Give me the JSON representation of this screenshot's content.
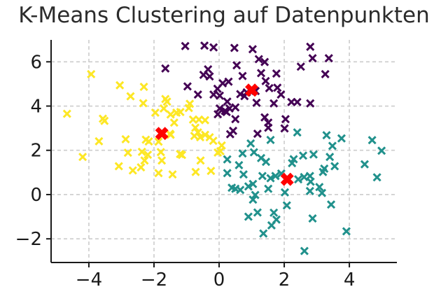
{
  "title": "K-Means Clustering auf Datenpunkten",
  "colors": {
    "background": "#ffffff",
    "title_text": "#2b2b2b",
    "grid": "#cccccc",
    "axis": "#1a1a1a",
    "tick_label": "#1a1a1a",
    "cluster_yellow": "#fde725",
    "cluster_purple": "#440154",
    "cluster_teal": "#21918c",
    "centroid_red": "#ff0000"
  },
  "chart_data": {
    "type": "scatter",
    "title": "K-Means Clustering auf Datenpunkten",
    "xlabel": "",
    "ylabel": "",
    "legend": null,
    "grid": true,
    "grid_style": "dashed",
    "xlim": [
      -5.16,
      5.46
    ],
    "ylim": [
      -3.07,
      6.99
    ],
    "x_ticks": [
      {
        "value": -4,
        "label": "−4"
      },
      {
        "value": -2,
        "label": "−2"
      },
      {
        "value": 0,
        "label": "0"
      },
      {
        "value": 2,
        "label": "2"
      },
      {
        "value": 4,
        "label": "4"
      }
    ],
    "y_ticks": [
      {
        "value": -2,
        "label": "−2"
      },
      {
        "value": 0,
        "label": "0"
      },
      {
        "value": 2,
        "label": "2"
      },
      {
        "value": 4,
        "label": "4"
      },
      {
        "value": 6,
        "label": "6"
      }
    ],
    "series": [
      {
        "name": "cluster-yellow",
        "color": "#fde725",
        "marker": "x",
        "points": [
          [
            -3.93,
            5.44
          ],
          [
            -3.05,
            4.94
          ],
          [
            -2.31,
            4.87
          ],
          [
            -2.72,
            4.44
          ],
          [
            -2.33,
            4.13
          ],
          [
            -4.67,
            3.65
          ],
          [
            -3.57,
            3.43
          ],
          [
            -3.52,
            3.33
          ],
          [
            -3.69,
            2.41
          ],
          [
            -2.87,
            2.5
          ],
          [
            -2.25,
            2.48
          ],
          [
            -2.16,
            2.4
          ],
          [
            -1.65,
            4.32
          ],
          [
            -1.6,
            4.2
          ],
          [
            -1.7,
            3.89
          ],
          [
            -1.96,
            3.7
          ],
          [
            -1.49,
            3.62
          ],
          [
            -1.31,
            3.7
          ],
          [
            -1.19,
            3.73
          ],
          [
            -1.38,
            3.25
          ],
          [
            -0.9,
            4.1
          ],
          [
            -0.93,
            3.91
          ],
          [
            -0.8,
            3.39
          ],
          [
            -0.62,
            3.39
          ],
          [
            -0.43,
            3.36
          ],
          [
            -0.73,
            3.02
          ],
          [
            -0.65,
            2.81
          ],
          [
            -0.76,
            2.65
          ],
          [
            -0.58,
            2.59
          ],
          [
            -0.43,
            2.7
          ],
          [
            -0.29,
            2.59
          ],
          [
            -0.18,
            2.43
          ],
          [
            0.08,
            2.22
          ],
          [
            0.04,
            1.96
          ],
          [
            -1.49,
            2.7
          ],
          [
            -1.51,
            2.75
          ],
          [
            -1.86,
            2.39
          ],
          [
            -1.79,
            1.92
          ],
          [
            -1.76,
            1.54
          ],
          [
            -1.2,
            1.83
          ],
          [
            -1.14,
            1.79
          ],
          [
            -0.57,
            1.54
          ],
          [
            -1.86,
            0.97
          ],
          [
            -1.43,
            0.91
          ],
          [
            -0.72,
            1.02
          ],
          [
            -0.25,
            1.07
          ],
          [
            -0.04,
            1.9
          ],
          [
            -4.19,
            1.7
          ],
          [
            -3.08,
            1.28
          ],
          [
            -2.8,
            1.89
          ],
          [
            -2.65,
            1.09
          ],
          [
            -2.4,
            1.23
          ],
          [
            -2.29,
            1.54
          ],
          [
            -2.19,
            1.8
          ],
          [
            -2.37,
            1.93
          ]
        ]
      },
      {
        "name": "cluster-purple",
        "color": "#440154",
        "marker": "x",
        "points": [
          [
            -1.04,
            6.71
          ],
          [
            -0.45,
            6.73
          ],
          [
            -0.17,
            6.65
          ],
          [
            0.47,
            6.63
          ],
          [
            1.03,
            6.57
          ],
          [
            -1.65,
            5.7
          ],
          [
            -0.34,
            5.66
          ],
          [
            -0.48,
            5.41
          ],
          [
            -0.29,
            5.34
          ],
          [
            0.54,
            5.84
          ],
          [
            0.72,
            5.36
          ],
          [
            0.29,
            5.1
          ],
          [
            0.11,
            5.03
          ],
          [
            -0.97,
            4.89
          ],
          [
            -0.05,
            4.78
          ],
          [
            -0.65,
            4.52
          ],
          [
            -0.17,
            4.52
          ],
          [
            0.02,
            4.47
          ],
          [
            0.65,
            4.54
          ],
          [
            0.25,
            4.2
          ],
          [
            0.5,
            3.94
          ],
          [
            0.32,
            3.89
          ],
          [
            0.18,
            3.78
          ],
          [
            -0.04,
            3.63
          ],
          [
            0.02,
            3.89
          ],
          [
            0.23,
            3.73
          ],
          [
            0.5,
            3.41
          ],
          [
            0.43,
            2.88
          ],
          [
            0.34,
            2.73
          ],
          [
            1.22,
            6.12
          ],
          [
            1.4,
            5.99
          ],
          [
            2.8,
            6.68
          ],
          [
            2.87,
            6.16
          ],
          [
            3.37,
            6.16
          ],
          [
            2.51,
            5.78
          ],
          [
            1.29,
            5.49
          ],
          [
            1.76,
            5.47
          ],
          [
            3.26,
            5.44
          ],
          [
            1.43,
            5.13
          ],
          [
            1.54,
            4.81
          ],
          [
            1.79,
            4.83
          ],
          [
            1.9,
            4.52
          ],
          [
            1.15,
            4.15
          ],
          [
            1.68,
            4.12
          ],
          [
            2.22,
            4.18
          ],
          [
            2.4,
            4.18
          ],
          [
            2.8,
            4.12
          ],
          [
            1.4,
            3.49
          ],
          [
            1.51,
            3.25
          ],
          [
            1.51,
            3.02
          ],
          [
            2.04,
            3.41
          ],
          [
            2.01,
            2.99
          ],
          [
            1.18,
            2.75
          ],
          [
            0.85,
            4.62
          ],
          [
            1.12,
            4.68
          ],
          [
            0.78,
            4.45
          ]
        ]
      },
      {
        "name": "cluster-teal",
        "color": "#21918c",
        "marker": "x",
        "points": [
          [
            0.25,
            1.59
          ],
          [
            0.61,
            1.33
          ],
          [
            0.25,
            0.97
          ],
          [
            0.75,
            0.91
          ],
          [
            0.72,
            1.86
          ],
          [
            1.07,
            1.91
          ],
          [
            0.39,
            0.31
          ],
          [
            0.5,
            0.26
          ],
          [
            0.65,
            0.21
          ],
          [
            0.9,
            0.37
          ],
          [
            1.04,
            0.48
          ],
          [
            0.9,
            -1.0
          ],
          [
            1.29,
            1.65
          ],
          [
            1.44,
            1.48
          ],
          [
            2.24,
            1.42
          ],
          [
            2.29,
            1.6
          ],
          [
            2.58,
            1.76
          ],
          [
            2.9,
            1.81
          ],
          [
            3.4,
            1.7
          ],
          [
            3.55,
            1.28
          ],
          [
            3.23,
            1.17
          ],
          [
            3.19,
            1.02
          ],
          [
            1.33,
            0.84
          ],
          [
            1.58,
            0.74
          ],
          [
            1.73,
            0.84
          ],
          [
            1.91,
            0.95
          ],
          [
            2.43,
            0.69
          ],
          [
            2.61,
            0.79
          ],
          [
            2.79,
            0.84
          ],
          [
            2.81,
            0.58
          ],
          [
            1.51,
            0.26
          ],
          [
            2.02,
            0.1
          ],
          [
            2.79,
            0.16
          ],
          [
            3.08,
            0.34
          ],
          [
            3.16,
            0.07
          ],
          [
            1.11,
            -0.02
          ],
          [
            1.04,
            -0.23
          ],
          [
            2.08,
            -0.49
          ],
          [
            3.44,
            -0.45
          ],
          [
            1.18,
            -0.81
          ],
          [
            1.68,
            -0.82
          ],
          [
            1.76,
            -1.13
          ],
          [
            1.61,
            -1.39
          ],
          [
            2.87,
            -1.08
          ],
          [
            1.36,
            -1.76
          ],
          [
            3.91,
            -1.66
          ],
          [
            2.62,
            -2.55
          ],
          [
            2.4,
            2.81
          ],
          [
            1.58,
            2.47
          ],
          [
            3.3,
            2.68
          ],
          [
            3.76,
            2.54
          ],
          [
            3.48,
            2.2
          ],
          [
            0.97,
            2.31
          ],
          [
            4.7,
            2.46
          ],
          [
            4.99,
            1.98
          ],
          [
            4.47,
            1.37
          ],
          [
            4.85,
            0.78
          ]
        ]
      },
      {
        "name": "centroids",
        "color": "#ff0000",
        "marker": "X-bold",
        "points": [
          [
            -1.76,
            2.76
          ],
          [
            1.0,
            4.72
          ],
          [
            2.09,
            0.69
          ]
        ]
      }
    ]
  }
}
